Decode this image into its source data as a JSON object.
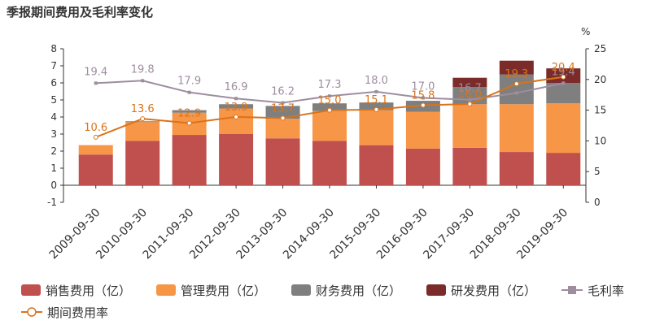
{
  "chart_data": {
    "type": "bar",
    "title": "季报期间费用及毛利率变化",
    "categories": [
      "2009-09-30",
      "2010-09-30",
      "2011-09-30",
      "2012-09-30",
      "2013-09-30",
      "2014-09-30",
      "2015-09-30",
      "2016-09-30",
      "2017-09-30",
      "2018-09-30",
      "2019-09-30"
    ],
    "stacked": true,
    "left_axis": {
      "ylim": [
        -1,
        8
      ],
      "ticks": [
        -1,
        0,
        1,
        2,
        3,
        4,
        5,
        6,
        7,
        8
      ]
    },
    "right_axis": {
      "label": "%",
      "ylim": [
        0,
        25
      ],
      "ticks": [
        0,
        5,
        10,
        15,
        20,
        25
      ]
    },
    "series": [
      {
        "name": "销售费用（亿）",
        "kind": "bar",
        "axis": "left",
        "color": "#c0504d",
        "values": [
          1.8,
          2.6,
          2.95,
          3.0,
          2.75,
          2.6,
          2.35,
          2.15,
          2.2,
          1.95,
          1.9
        ]
      },
      {
        "name": "管理费用（亿）",
        "kind": "bar",
        "axis": "left",
        "color": "#f79646",
        "values": [
          0.55,
          1.1,
          1.3,
          1.5,
          1.15,
          1.75,
          2.05,
          2.15,
          2.55,
          2.8,
          2.9
        ]
      },
      {
        "name": "财务费用（亿）",
        "kind": "bar",
        "axis": "left",
        "color": "#7f7f7f",
        "values": [
          0.0,
          0.05,
          0.15,
          0.25,
          0.75,
          0.45,
          0.45,
          0.65,
          1.0,
          1.75,
          1.2
        ]
      },
      {
        "name": "研发费用（亿）",
        "kind": "bar",
        "axis": "left",
        "color": "#7b2c2a",
        "values": [
          0,
          0,
          0,
          0,
          0,
          0,
          0,
          0,
          0.55,
          0.8,
          0.85
        ]
      },
      {
        "name": "毛利率",
        "kind": "line",
        "axis": "right",
        "color": "#9e8d9e",
        "marker": "square",
        "values": [
          19.4,
          19.8,
          17.9,
          16.9,
          16.2,
          17.3,
          18.0,
          17.0,
          16.7,
          17.8,
          19.4
        ]
      },
      {
        "name": "期间费用率",
        "kind": "line",
        "axis": "right",
        "color": "#d9731a",
        "marker": "circle",
        "values": [
          10.6,
          13.6,
          12.9,
          13.9,
          13.7,
          15.0,
          15.1,
          15.8,
          16.0,
          19.3,
          20.4
        ]
      }
    ],
    "line_labels": {
      "毛利率": [
        "19.4",
        "19.8",
        "17.9",
        "16.9",
        "16.2",
        "17.3",
        "18.0",
        "17.0",
        "16.7",
        "",
        "19.4"
      ],
      "期间费用率": [
        "10.6",
        "13.6",
        "12.9",
        "13.9",
        "13.7",
        "15.0",
        "15.1",
        "15.8",
        "16.0",
        "19.3",
        "20.4"
      ]
    },
    "legend_position": "bottom",
    "grid": false
  }
}
